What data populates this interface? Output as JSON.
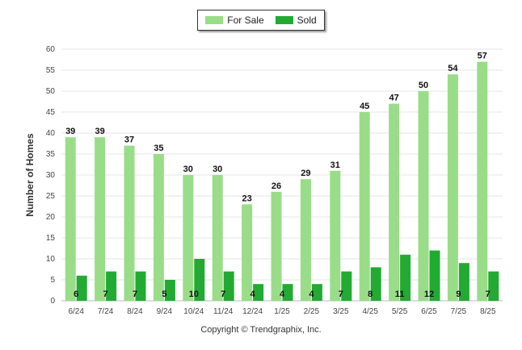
{
  "chart_data": {
    "type": "bar",
    "ylabel": "Number of Homes",
    "xlabel": "",
    "ylim": [
      0,
      60
    ],
    "yticks": [
      0,
      5,
      10,
      15,
      20,
      25,
      30,
      35,
      40,
      45,
      50,
      55,
      60
    ],
    "grid": true,
    "legend": "top-center",
    "categories": [
      "6/24",
      "7/24",
      "8/24",
      "9/24",
      "10/24",
      "11/24",
      "12/24",
      "1/25",
      "2/25",
      "3/25",
      "4/25",
      "5/25",
      "6/25",
      "7/25",
      "8/25"
    ],
    "series": [
      {
        "name": "For Sale",
        "color": "#99dd88",
        "values": [
          39,
          39,
          37,
          35,
          30,
          30,
          23,
          26,
          29,
          31,
          45,
          47,
          50,
          54,
          57
        ]
      },
      {
        "name": "Sold",
        "color": "#22aa33",
        "values": [
          6,
          7,
          7,
          5,
          10,
          7,
          4,
          4,
          4,
          7,
          8,
          11,
          12,
          9,
          7
        ]
      }
    ]
  },
  "footer": {
    "copyright": "Copyright © Trendgraphix, Inc."
  }
}
